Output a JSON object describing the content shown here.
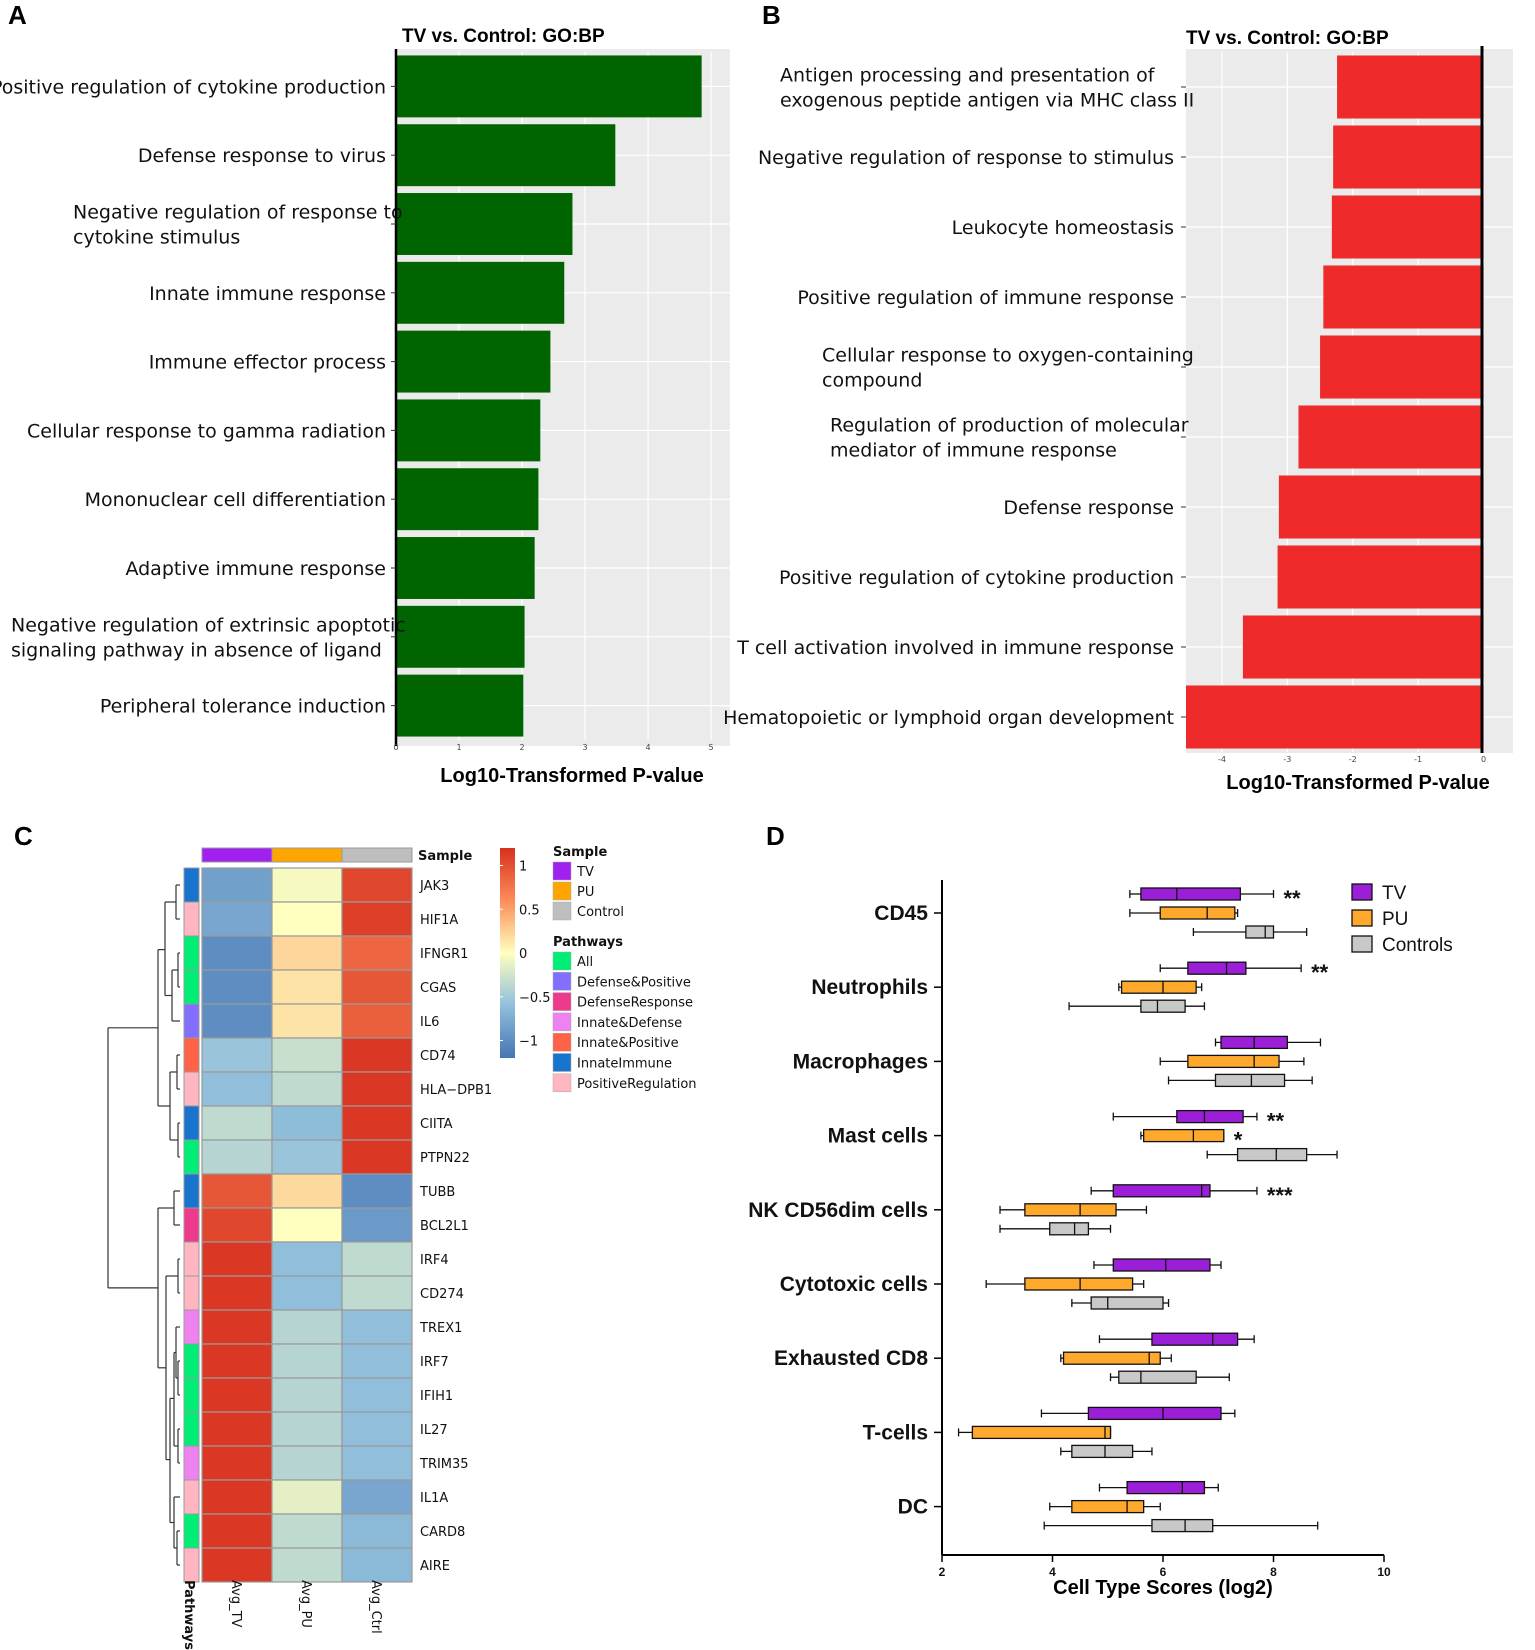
{
  "panels": {
    "A": {
      "label": "A"
    },
    "B": {
      "label": "B"
    },
    "C": {
      "label": "C"
    },
    "D": {
      "label": "D"
    }
  },
  "chart_data": [
    {
      "id": "A",
      "type": "bar",
      "orientation": "horizontal",
      "title": "TV vs. Control: GO:BP",
      "xlabel": "Log10-Transformed P-value",
      "xlim": [
        0,
        5.3
      ],
      "xticks": [
        "0",
        "1",
        "2",
        "3",
        "4",
        "5"
      ],
      "bar_color": "#006400",
      "categories": [
        [
          "Positive regulation of cytokine production"
        ],
        [
          "Defense response to virus"
        ],
        [
          "Negative regulation of response to",
          "cytokine stimulus"
        ],
        [
          "Innate immune response"
        ],
        [
          "Immune effector process"
        ],
        [
          "Cellular response to gamma radiation"
        ],
        [
          "Mononuclear cell differentiation"
        ],
        [
          "Adaptive immune response"
        ],
        [
          "Negative regulation of extrinsic apoptotic",
          "signaling pathway in absence of ligand"
        ],
        [
          "Peripheral tolerance induction"
        ]
      ],
      "values": [
        4.85,
        3.48,
        2.8,
        2.67,
        2.45,
        2.29,
        2.26,
        2.2,
        2.04,
        2.02
      ]
    },
    {
      "id": "B",
      "type": "bar",
      "orientation": "horizontal",
      "title": "TV vs. Control: GO:BP",
      "xlabel": "Log10-Transformed P-value",
      "xlim": [
        -4.55,
        0.45
      ],
      "xticks": [
        "-4",
        "-3",
        "-2",
        "-1",
        "0"
      ],
      "bar_color": "#ee2a2a",
      "categories": [
        [
          "Antigen processing and presentation of",
          "exogenous peptide antigen via MHC class II"
        ],
        [
          "Negative regulation of response to stimulus"
        ],
        [
          "Leukocyte homeostasis"
        ],
        [
          "Positive regulation of immune response"
        ],
        [
          "Cellular response to oxygen-containing",
          "compound"
        ],
        [
          "Regulation of production of molecular",
          "mediator of immune response"
        ],
        [
          "Defense response"
        ],
        [
          "Positive regulation of cytokine production"
        ],
        [
          "T cell activation involved in immune response"
        ],
        [
          "Hematopoietic or lymphoid organ development"
        ]
      ],
      "values": [
        -2.24,
        -2.3,
        -2.32,
        -2.45,
        -2.5,
        -2.83,
        -3.13,
        -3.15,
        -3.68,
        -4.55
      ]
    },
    {
      "id": "C",
      "type": "heatmap",
      "columns": [
        "Avg_TV",
        "Avg_PU",
        "Avg_Ctrl"
      ],
      "column_annotation_label": "Sample",
      "row_annotation_label": "Pathways",
      "rows": [
        "JAK3",
        "HIF1A",
        "IFNGR1",
        "CGAS",
        "IL6",
        "CD74",
        "HLA−DPB1",
        "CIITA",
        "PTPN22",
        "TUBB",
        "BCL2L1",
        "IRF4",
        "CD274",
        "TREX1",
        "IRF7",
        "IFIH1",
        "IL27",
        "TRIM35",
        "IL1A",
        "CARD8",
        "AIRE"
      ],
      "row_pathways": [
        "InnateImmune",
        "PositiveRegulation",
        "All",
        "All",
        "Defense&Positive",
        "Innate&Positive",
        "PositiveRegulation",
        "InnateImmune",
        "All",
        "InnateImmune",
        "DefenseResponse",
        "PositiveRegulation",
        "PositiveRegulation",
        "Innate&Defense",
        "All",
        "All",
        "All",
        "Innate&Defense",
        "PositiveRegulation",
        "All",
        "PositiveRegulation"
      ],
      "values": [
        [
          -0.85,
          -0.05,
          1.05
        ],
        [
          -0.8,
          0.0,
          1.1
        ],
        [
          -1.0,
          0.22,
          0.85
        ],
        [
          -1.0,
          0.15,
          0.95
        ],
        [
          -1.0,
          0.15,
          0.9
        ],
        [
          -0.55,
          -0.3,
          1.15
        ],
        [
          -0.6,
          -0.35,
          1.15
        ],
        [
          -0.35,
          -0.62,
          1.15
        ],
        [
          -0.4,
          -0.55,
          1.15
        ],
        [
          0.95,
          0.2,
          -1.0
        ],
        [
          1.05,
          0.0,
          -0.9
        ],
        [
          1.15,
          -0.6,
          -0.35
        ],
        [
          1.15,
          -0.6,
          -0.35
        ],
        [
          1.15,
          -0.4,
          -0.6
        ],
        [
          1.15,
          -0.4,
          -0.6
        ],
        [
          1.15,
          -0.4,
          -0.6
        ],
        [
          1.15,
          -0.4,
          -0.6
        ],
        [
          1.15,
          -0.4,
          -0.6
        ],
        [
          1.15,
          -0.15,
          -0.8
        ],
        [
          1.15,
          -0.35,
          -0.65
        ],
        [
          1.15,
          -0.35,
          -0.65
        ]
      ],
      "scale": {
        "min": -1.2,
        "max": 1.2,
        "ticks": [
          "1",
          "0.5",
          "0",
          "−0.5",
          "−1"
        ],
        "tick_values": [
          1,
          0.5,
          0,
          -0.5,
          -1
        ]
      },
      "sample_legend": {
        "title": "Sample",
        "items": [
          {
            "label": "TV",
            "color": "#a020f0"
          },
          {
            "label": "PU",
            "color": "#ffa500"
          },
          {
            "label": "Control",
            "color": "#bebebe"
          }
        ]
      },
      "pathway_legend": {
        "title": "Pathways",
        "items": [
          {
            "label": "All",
            "color": "#00ee76"
          },
          {
            "label": "Defense&Positive",
            "color": "#836fff"
          },
          {
            "label": "DefenseResponse",
            "color": "#ee3a8c"
          },
          {
            "label": "Innate&Defense",
            "color": "#ee82ee"
          },
          {
            "label": "Innate&Positive",
            "color": "#ff6347"
          },
          {
            "label": "InnateImmune",
            "color": "#1874cd"
          },
          {
            "label": "PositiveRegulation",
            "color": "#ffb6c1"
          }
        ]
      }
    },
    {
      "id": "D",
      "type": "boxplot",
      "orientation": "horizontal",
      "xlabel": "Cell Type Scores (log2)",
      "xlim": [
        2,
        10
      ],
      "xticks": [
        "2",
        "4",
        "6",
        "8",
        "10"
      ],
      "groups": [
        {
          "name": "TV",
          "color": "#9b1fd6",
          "legend": "TV"
        },
        {
          "name": "PU",
          "color": "#ffa92c",
          "legend": "PU"
        },
        {
          "name": "Controls",
          "color": "#c8c8c8",
          "legend": "Controls"
        }
      ],
      "categories": [
        "CD45",
        "Neutrophils",
        "Macrophages",
        "Mast cells",
        "NK CD56dim cells",
        "Cytotoxic cells",
        "Exhausted CD8",
        "T-cells",
        "DC"
      ],
      "boxes": [
        [
          [
            5.4,
            5.6,
            6.25,
            7.4,
            8.0
          ],
          [
            5.4,
            5.95,
            6.8,
            7.3,
            7.35
          ],
          [
            6.55,
            7.5,
            7.85,
            8.0,
            8.6
          ]
        ],
        [
          [
            5.95,
            6.45,
            7.15,
            7.5,
            8.5
          ],
          [
            5.2,
            5.25,
            6.0,
            6.6,
            6.7
          ],
          [
            4.3,
            5.6,
            5.9,
            6.4,
            6.75
          ]
        ],
        [
          [
            6.95,
            7.05,
            7.65,
            8.25,
            8.85
          ],
          [
            5.95,
            6.45,
            7.65,
            8.1,
            8.55
          ],
          [
            6.1,
            6.95,
            7.6,
            8.2,
            8.7
          ]
        ],
        [
          [
            5.1,
            6.25,
            6.75,
            7.45,
            7.7
          ],
          [
            5.6,
            5.65,
            6.55,
            7.1,
            7.1
          ],
          [
            6.8,
            7.35,
            8.05,
            8.6,
            9.15
          ]
        ],
        [
          [
            4.7,
            5.1,
            6.7,
            6.85,
            7.7
          ],
          [
            3.05,
            3.5,
            4.5,
            5.15,
            5.7
          ],
          [
            3.05,
            3.95,
            4.4,
            4.65,
            5.05
          ]
        ],
        [
          [
            4.75,
            5.1,
            6.05,
            6.85,
            7.05
          ],
          [
            2.8,
            3.5,
            4.5,
            5.45,
            5.65
          ],
          [
            4.35,
            4.7,
            5.0,
            6.0,
            6.1
          ]
        ],
        [
          [
            4.85,
            5.8,
            6.9,
            7.35,
            7.65
          ],
          [
            4.15,
            4.2,
            5.75,
            5.95,
            6.15
          ],
          [
            5.05,
            5.2,
            5.6,
            6.6,
            7.2
          ]
        ],
        [
          [
            3.8,
            4.65,
            6.0,
            7.05,
            7.3
          ],
          [
            2.3,
            2.55,
            4.95,
            5.05,
            5.05
          ],
          [
            4.15,
            4.35,
            4.95,
            5.45,
            5.8
          ]
        ],
        [
          [
            4.85,
            5.35,
            6.35,
            6.75,
            7.0
          ],
          [
            3.95,
            4.35,
            5.35,
            5.65,
            5.95
          ],
          [
            3.85,
            5.8,
            6.4,
            6.9,
            8.8
          ]
        ]
      ],
      "significance": [
        [
          "**",
          "",
          ""
        ],
        [
          "**",
          "",
          ""
        ],
        [
          "",
          "",
          ""
        ],
        [
          "**",
          "*",
          ""
        ],
        [
          "***",
          "",
          ""
        ],
        [
          "",
          "",
          ""
        ],
        [
          "",
          "",
          ""
        ],
        [
          "",
          "",
          ""
        ],
        [
          "",
          "",
          ""
        ]
      ]
    }
  ]
}
